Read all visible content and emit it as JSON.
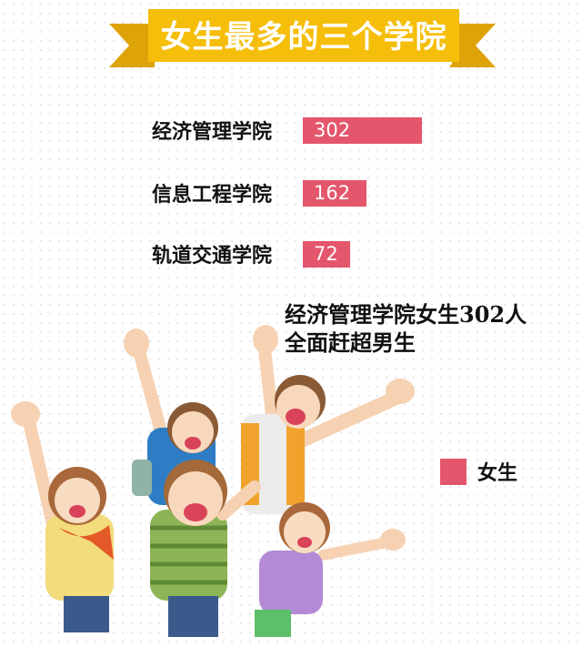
{
  "header": {
    "title": "女生最多的三个学院"
  },
  "colors": {
    "ribbon": "#F5BE0B",
    "ribbon_end": "#DFA30A",
    "bar": "#E4566B"
  },
  "chart_data": {
    "type": "bar",
    "orientation": "horizontal",
    "title": "女生最多的三个学院",
    "categories": [
      "经济管理学院",
      "信息工程学院",
      "轨道交通学院"
    ],
    "series": [
      {
        "name": "女生",
        "values": [
          302,
          162,
          72
        ]
      }
    ],
    "data_labels": [
      "302",
      "162",
      "72"
    ],
    "grid": false,
    "legend": "bottom-right"
  },
  "callout": {
    "line1": "经济管理学院女生302人",
    "line2": "全面赶超男生"
  },
  "legend": {
    "label": "女生"
  },
  "illustration": {
    "icon": "cheering-students-illustration"
  }
}
